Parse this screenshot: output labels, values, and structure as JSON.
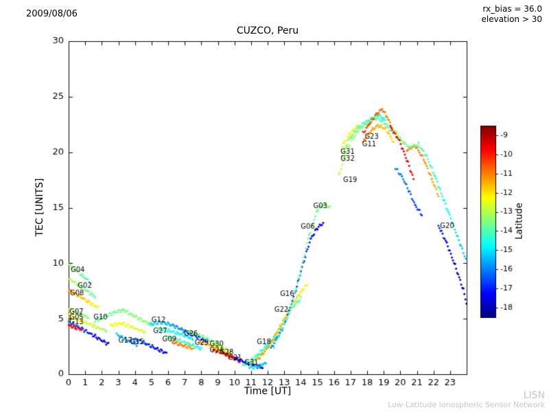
{
  "header": {
    "date": "2009/08/06",
    "rx_bias": "rx_bias = 36.0",
    "elevation": "elevation > 30"
  },
  "watermark": {
    "line1": "LISN",
    "line2": "Low-Latitude Ionospheric Sensor Network"
  },
  "chart_data": {
    "type": "scatter",
    "title": "CUZCO, Peru",
    "xlabel": "Time [UT]",
    "ylabel": "TEC [UNITS]",
    "xlim": [
      0,
      24
    ],
    "ylim": [
      0,
      30
    ],
    "xticks": [
      0,
      1,
      2,
      3,
      4,
      5,
      6,
      7,
      8,
      9,
      10,
      11,
      12,
      13,
      14,
      15,
      16,
      17,
      18,
      19,
      20,
      21,
      22,
      23
    ],
    "yticks": [
      0,
      5,
      10,
      15,
      20,
      25,
      30
    ],
    "grid": false,
    "colorbar": {
      "label": "Latitude",
      "ticks": [
        -9,
        -10,
        -11,
        -12,
        -13,
        -14,
        -15,
        -16,
        -17,
        -18
      ],
      "vmin": -18.5,
      "vmax": -8.5,
      "colormap": "jet"
    },
    "series": [
      {
        "label": "G04",
        "label_pos": [
          0.12,
          9.35
        ],
        "points": [
          [
            0,
            9.9,
            -13.2
          ],
          [
            0.45,
            9.4,
            -13.5
          ],
          [
            0.9,
            8.8,
            -13.8
          ],
          [
            1.3,
            8.3,
            -14.1
          ]
        ]
      },
      {
        "label": "G02",
        "label_pos": [
          0.55,
          7.95
        ],
        "points": [
          [
            0,
            8.6,
            -13.0
          ],
          [
            0.55,
            8.1,
            -13.3
          ],
          [
            1.1,
            7.5,
            -13.6
          ],
          [
            1.6,
            7.0,
            -13.9
          ]
        ]
      },
      {
        "label": "G08",
        "label_pos": [
          0.08,
          7.25
        ],
        "points": [
          [
            0,
            7.6,
            -11.2
          ],
          [
            0.6,
            7.1,
            -11.5
          ],
          [
            1.2,
            6.5,
            -11.9
          ],
          [
            1.8,
            6.0,
            -12.3
          ]
        ]
      },
      {
        "label": "G07",
        "label_pos": [
          0.05,
          5.6
        ],
        "points": [
          [
            0,
            5.9,
            -12.9
          ],
          [
            0.6,
            5.5,
            -13.2
          ],
          [
            1.2,
            5.1,
            -13.5
          ]
        ]
      },
      {
        "label": "G05",
        "label_pos": [
          0.05,
          5.12
        ],
        "points": [
          [
            0,
            5.3,
            -12.0
          ],
          [
            0.8,
            4.8,
            -12.4
          ],
          [
            1.6,
            4.3,
            -12.8
          ],
          [
            2.3,
            3.9,
            -13.2
          ]
        ]
      },
      {
        "label": "G13",
        "label_pos": [
          0.05,
          4.68
        ],
        "points": [
          [
            0,
            4.7,
            -16.0
          ],
          [
            0.8,
            4.1,
            -16.6
          ],
          [
            1.6,
            3.4,
            -17.2
          ],
          [
            2.4,
            2.7,
            -17.8
          ]
        ]
      },
      {
        "label": "",
        "label_pos": null,
        "points": [
          [
            0,
            4.4,
            -9.6
          ],
          [
            0.4,
            4.2,
            -9.8
          ],
          [
            0.8,
            4.0,
            -10.0
          ]
        ]
      },
      {
        "label": "G10",
        "label_pos": [
          1.5,
          5.1
        ],
        "points": [
          [
            1.6,
            4.8,
            -13.8
          ],
          [
            2.2,
            5.2,
            -13.7
          ],
          [
            2.8,
            5.6,
            -13.6
          ],
          [
            3.3,
            5.8,
            -13.5
          ],
          [
            3.9,
            5.3,
            -13.4
          ],
          [
            4.5,
            4.8,
            -13.4
          ],
          [
            5.1,
            4.4,
            -13.3
          ]
        ]
      },
      {
        "label": "",
        "label_pos": null,
        "points": [
          [
            2.5,
            4.4,
            -12.2
          ],
          [
            3.2,
            4.6,
            -12.4
          ],
          [
            3.9,
            4.2,
            -12.6
          ],
          [
            4.6,
            3.8,
            -12.8
          ]
        ]
      },
      {
        "label": "G12",
        "label_pos": [
          5.0,
          4.85
        ],
        "points": [
          [
            4.9,
            4.5,
            -15.0
          ],
          [
            5.6,
            4.7,
            -15.3
          ],
          [
            6.3,
            4.4,
            -15.7
          ],
          [
            7.0,
            3.9,
            -16.1
          ],
          [
            7.7,
            3.4,
            -16.5
          ],
          [
            8.3,
            3.0,
            -16.8
          ]
        ]
      },
      {
        "label": "G27",
        "label_pos": [
          5.1,
          3.9
        ],
        "points": [
          [
            5.4,
            4.1,
            -14.2
          ],
          [
            6.1,
            3.9,
            -14.5
          ],
          [
            6.8,
            3.6,
            -14.8
          ],
          [
            7.5,
            3.2,
            -15.1
          ]
        ]
      },
      {
        "label": "G17",
        "label_pos": [
          3.0,
          3.0
        ],
        "points": [
          [
            2.9,
            3.6,
            -15.2
          ],
          [
            3.5,
            3.1,
            -15.6
          ],
          [
            4.1,
            2.7,
            -16.0
          ]
        ]
      },
      {
        "label": "G15",
        "label_pos": [
          3.7,
          2.9
        ],
        "points": [
          [
            3.9,
            3.2,
            -16.2
          ],
          [
            4.6,
            2.8,
            -16.7
          ],
          [
            5.3,
            2.3,
            -17.2
          ],
          [
            5.9,
            1.9,
            -17.6
          ]
        ]
      },
      {
        "label": "G09",
        "label_pos": [
          5.65,
          3.1
        ],
        "points": [
          [
            5.9,
            3.4,
            -13.8
          ],
          [
            6.6,
            3.1,
            -14.0
          ],
          [
            7.3,
            2.7,
            -14.3
          ],
          [
            8.0,
            2.3,
            -14.6
          ]
        ]
      },
      {
        "label": "",
        "label_pos": null,
        "points": [
          [
            6.2,
            2.9,
            -10.8
          ],
          [
            6.9,
            2.6,
            -11.0
          ],
          [
            7.5,
            2.3,
            -11.2
          ]
        ]
      },
      {
        "label": "G26",
        "label_pos": [
          6.95,
          3.6
        ],
        "points": [
          [
            7.2,
            3.9,
            -13.2
          ],
          [
            7.9,
            3.5,
            -13.5
          ],
          [
            8.6,
            3.0,
            -13.9
          ],
          [
            9.2,
            2.5,
            -14.2
          ]
        ]
      },
      {
        "label": "G29",
        "label_pos": [
          7.6,
          2.85
        ],
        "points": [
          [
            7.9,
            2.9,
            -11.2
          ],
          [
            8.5,
            2.6,
            -11.6
          ],
          [
            9.1,
            2.2,
            -11.9
          ],
          [
            9.6,
            1.8,
            -12.2
          ]
        ]
      },
      {
        "label": "G30",
        "label_pos": [
          8.5,
          2.7
        ],
        "points": [
          [
            8.7,
            2.8,
            -12.4
          ],
          [
            9.3,
            2.4,
            -12.8
          ],
          [
            9.8,
            1.9,
            -13.2
          ]
        ]
      },
      {
        "label": "G24",
        "label_pos": [
          8.5,
          2.15
        ],
        "points": [
          [
            8.7,
            2.2,
            -10.2
          ],
          [
            9.3,
            1.9,
            -10.6
          ],
          [
            9.9,
            1.5,
            -10.9
          ],
          [
            10.3,
            1.2,
            -11.2
          ]
        ]
      },
      {
        "label": "G28",
        "label_pos": [
          9.1,
          1.95
        ],
        "points": [
          [
            9.3,
            1.9,
            -9.4
          ],
          [
            9.8,
            1.6,
            -9.7
          ],
          [
            10.3,
            1.2,
            -10.0
          ]
        ]
      },
      {
        "label": "G21",
        "label_pos": [
          9.6,
          1.45
        ],
        "points": [
          [
            10.0,
            1.5,
            -17.0
          ],
          [
            10.6,
            1.1,
            -17.4
          ],
          [
            11.2,
            0.8,
            -17.8
          ],
          [
            11.7,
            0.6,
            -18.0
          ]
        ]
      },
      {
        "label": "G31",
        "label_pos": [
          10.6,
          1.0
        ],
        "points": [
          [
            10.9,
            0.6,
            -15.0
          ],
          [
            11.4,
            0.7,
            -15.2
          ],
          [
            11.9,
            1.0,
            -15.4
          ]
        ]
      },
      {
        "label": "G18",
        "label_pos": [
          11.35,
          2.9
        ],
        "points": [
          [
            10.5,
            0.8,
            -14.0
          ],
          [
            11.0,
            1.2,
            -14.2
          ],
          [
            11.5,
            1.9,
            -14.4
          ],
          [
            12.0,
            2.7,
            -14.6
          ],
          [
            12.5,
            3.4,
            -14.9
          ]
        ]
      },
      {
        "label": "G22",
        "label_pos": [
          12.4,
          5.8
        ],
        "points": [
          [
            11.0,
            1.0,
            -13.0
          ],
          [
            11.7,
            1.8,
            -13.2
          ],
          [
            12.4,
            3.2,
            -13.4
          ],
          [
            13.0,
            4.9,
            -13.6
          ],
          [
            13.6,
            6.2,
            -13.8
          ],
          [
            14.0,
            6.8,
            -14.0
          ]
        ]
      },
      {
        "label": "G16",
        "label_pos": [
          12.75,
          7.2
        ],
        "points": [
          [
            11.4,
            1.3,
            -11.2
          ],
          [
            12.1,
            2.6,
            -11.4
          ],
          [
            12.8,
            4.4,
            -11.6
          ],
          [
            13.4,
            6.1,
            -11.8
          ],
          [
            14.0,
            7.4,
            -12.0
          ],
          [
            14.4,
            8.1,
            -12.2
          ]
        ]
      },
      {
        "label": "G06",
        "label_pos": [
          14.0,
          13.3
        ],
        "points": [
          [
            12.2,
            2.3,
            -16.2
          ],
          [
            13.0,
            4.4,
            -16.4
          ],
          [
            13.7,
            7.6,
            -16.7
          ],
          [
            14.2,
            10.3,
            -16.9
          ],
          [
            14.6,
            12.2,
            -17.1
          ],
          [
            15.0,
            13.2,
            -17.3
          ],
          [
            15.35,
            13.6,
            -17.4
          ]
        ]
      },
      {
        "label": "G03",
        "label_pos": [
          14.75,
          15.15
        ],
        "points": [
          [
            12.4,
            2.5,
            -14.0
          ],
          [
            13.2,
            5.2,
            -13.9
          ],
          [
            14.0,
            9.2,
            -13.8
          ],
          [
            14.5,
            12.6,
            -13.7
          ],
          [
            15.0,
            14.8,
            -13.6
          ],
          [
            15.4,
            15.3,
            -13.5
          ],
          [
            15.75,
            15.0,
            -13.4
          ]
        ]
      },
      {
        "label": "G19",
        "label_pos": [
          16.55,
          17.5
        ],
        "points": [
          [
            16.3,
            17.9,
            -12.8
          ],
          [
            16.7,
            19.8,
            -13.0
          ],
          [
            17.1,
            21.2,
            -13.2
          ],
          [
            17.6,
            22.2,
            -13.4
          ],
          [
            18.1,
            22.7,
            -13.6
          ],
          [
            18.6,
            23.1,
            -13.8
          ],
          [
            19.1,
            22.6,
            -14.0
          ],
          [
            19.5,
            21.8,
            -14.2
          ]
        ]
      },
      {
        "label": "G31",
        "label_pos": [
          16.4,
          20.0
        ],
        "points": [
          [
            16.45,
            20.4,
            -12.0
          ],
          [
            16.95,
            21.7,
            -12.2
          ],
          [
            17.45,
            22.4,
            -12.4
          ]
        ]
      },
      {
        "label": "G32",
        "label_pos": [
          16.4,
          19.4
        ],
        "points": [
          [
            16.5,
            19.8,
            -13.4
          ],
          [
            17.0,
            21.4,
            -13.6
          ],
          [
            17.5,
            22.3,
            -13.9
          ],
          [
            18.1,
            22.9,
            -14.1
          ],
          [
            18.65,
            23.4,
            -14.3
          ],
          [
            19.1,
            22.9,
            -14.5
          ]
        ]
      },
      {
        "label": "G23",
        "label_pos": [
          17.85,
          21.4
        ],
        "points": [
          [
            17.75,
            21.7,
            -10.2
          ],
          [
            18.15,
            22.6,
            -10.4
          ],
          [
            18.55,
            23.4,
            -10.6
          ],
          [
            18.9,
            23.9,
            -10.8
          ],
          [
            19.2,
            23.2,
            -11.0
          ],
          [
            19.5,
            22.2,
            -11.2
          ],
          [
            19.8,
            21.3,
            -11.4
          ]
        ]
      },
      {
        "label": "G11",
        "label_pos": [
          17.7,
          20.7
        ],
        "points": [
          [
            17.75,
            20.9,
            -11.0
          ],
          [
            18.2,
            21.9,
            -11.2
          ],
          [
            18.65,
            22.4,
            -11.5
          ],
          [
            19.15,
            22.1,
            -11.7
          ],
          [
            19.6,
            20.9,
            -11.9
          ]
        ]
      },
      {
        "label": "",
        "label_pos": null,
        "points": [
          [
            19.4,
            22.3,
            -9.3
          ],
          [
            19.9,
            21.2,
            -9.4
          ],
          [
            20.4,
            19.3,
            -9.5
          ],
          [
            20.8,
            17.6,
            -9.6
          ]
        ]
      },
      {
        "label": "",
        "label_pos": null,
        "points": [
          [
            20.4,
            20.2,
            -10.8
          ],
          [
            20.9,
            20.6,
            -10.9
          ],
          [
            21.4,
            19.4,
            -11.1
          ],
          [
            21.9,
            17.6,
            -11.3
          ],
          [
            22.3,
            16.1,
            -11.4
          ]
        ]
      },
      {
        "label": "G20",
        "label_pos": [
          22.4,
          13.35
        ],
        "points": [
          [
            19.6,
            22.1,
            -13.2
          ],
          [
            20.1,
            21.0,
            -13.4
          ],
          [
            20.6,
            20.4,
            -13.6
          ],
          [
            21.1,
            20.7,
            -13.8
          ],
          [
            21.6,
            19.6,
            -14.0
          ],
          [
            22.1,
            17.8,
            -14.3
          ],
          [
            22.6,
            15.8,
            -14.6
          ],
          [
            23.1,
            13.8,
            -14.9
          ],
          [
            23.6,
            11.8,
            -15.2
          ],
          [
            23.95,
            10.4,
            -15.4
          ]
        ]
      },
      {
        "label": "",
        "label_pos": null,
        "points": [
          [
            19.7,
            18.6,
            -15.8
          ],
          [
            20.1,
            17.8,
            -16.0
          ],
          [
            20.5,
            16.6,
            -16.3
          ],
          [
            20.9,
            15.2,
            -16.6
          ],
          [
            21.3,
            14.4,
            -16.8
          ]
        ]
      },
      {
        "label": "",
        "label_pos": null,
        "points": [
          [
            22.3,
            13.4,
            -16.8
          ],
          [
            22.8,
            11.8,
            -17.2
          ],
          [
            23.3,
            9.8,
            -17.6
          ],
          [
            23.8,
            7.6,
            -17.9
          ],
          [
            23.99,
            6.4,
            -18.0
          ]
        ]
      }
    ]
  }
}
